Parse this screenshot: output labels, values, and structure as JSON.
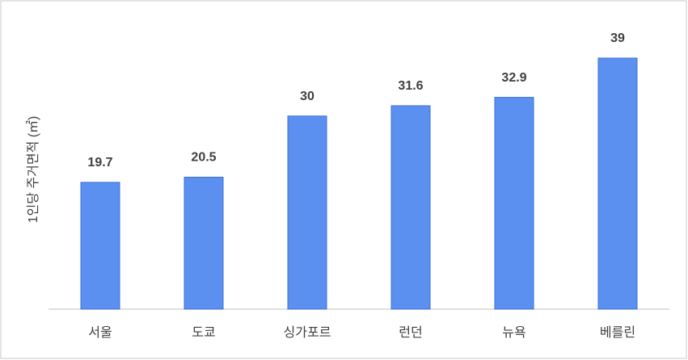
{
  "chart_data": {
    "type": "bar",
    "y_label": "1인당 주거면적 (㎡)",
    "categories": [
      "서울",
      "도쿄",
      "싱가포르",
      "런던",
      "뉴욕",
      "베를린"
    ],
    "values": [
      19.7,
      20.5,
      30,
      31.6,
      32.9,
      39
    ],
    "color": "#5b8ff0",
    "ylim": [
      0,
      40
    ]
  }
}
